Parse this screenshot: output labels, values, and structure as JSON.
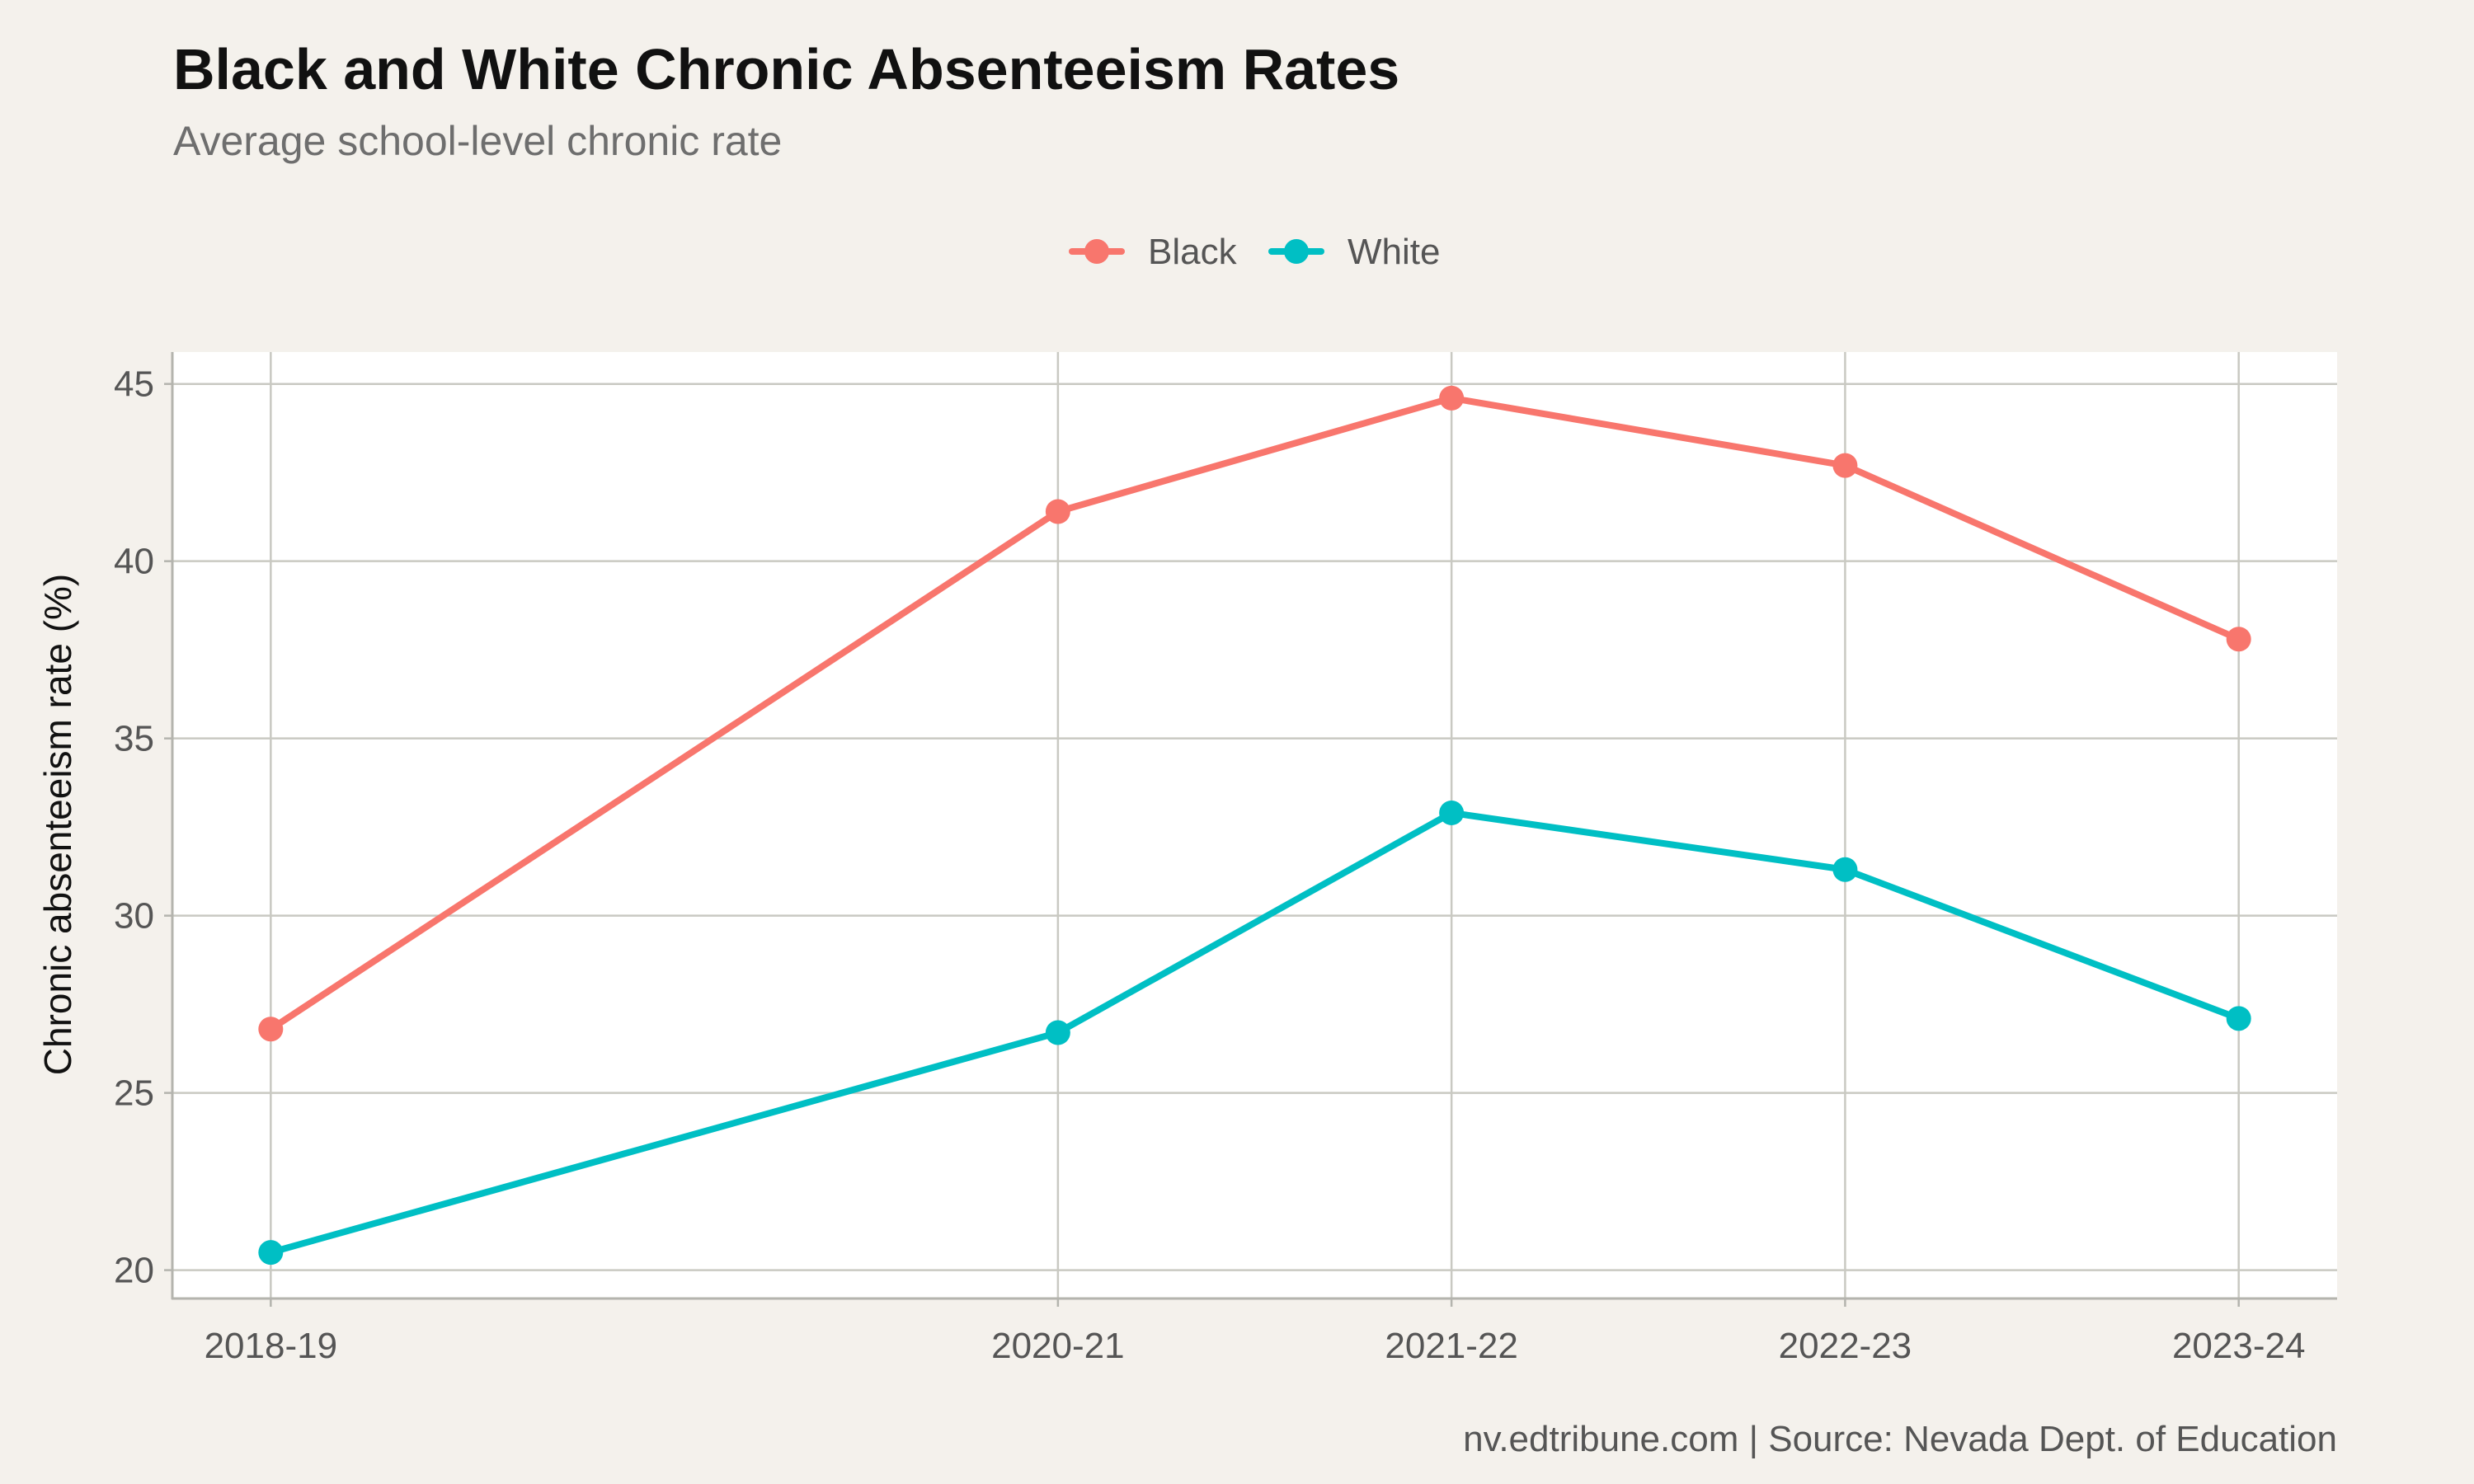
{
  "chart_data": {
    "type": "line",
    "title": "Black and White Chronic Absenteeism Rates",
    "subtitle": "Average school-level chronic rate",
    "ylabel": "Chronic absenteeism rate (%)",
    "xlabel": "",
    "caption": "nv.edtribune.com | Source: Nevada Dept. of Education",
    "x_categories": [
      "2018-19",
      "2020-21",
      "2021-22",
      "2022-23",
      "2023-24"
    ],
    "x_positions": [
      0,
      2,
      3,
      4,
      5
    ],
    "ylim": [
      19.2,
      45.9
    ],
    "yticks": [
      20,
      25,
      30,
      35,
      40,
      45
    ],
    "grid": true,
    "legend_position": "top",
    "series": [
      {
        "name": "Black",
        "color": "#f8766d",
        "values": [
          26.8,
          41.4,
          44.6,
          42.7,
          37.8
        ]
      },
      {
        "name": "White",
        "color": "#00bfc4",
        "values": [
          20.5,
          26.7,
          32.9,
          31.3,
          27.1
        ]
      }
    ]
  }
}
